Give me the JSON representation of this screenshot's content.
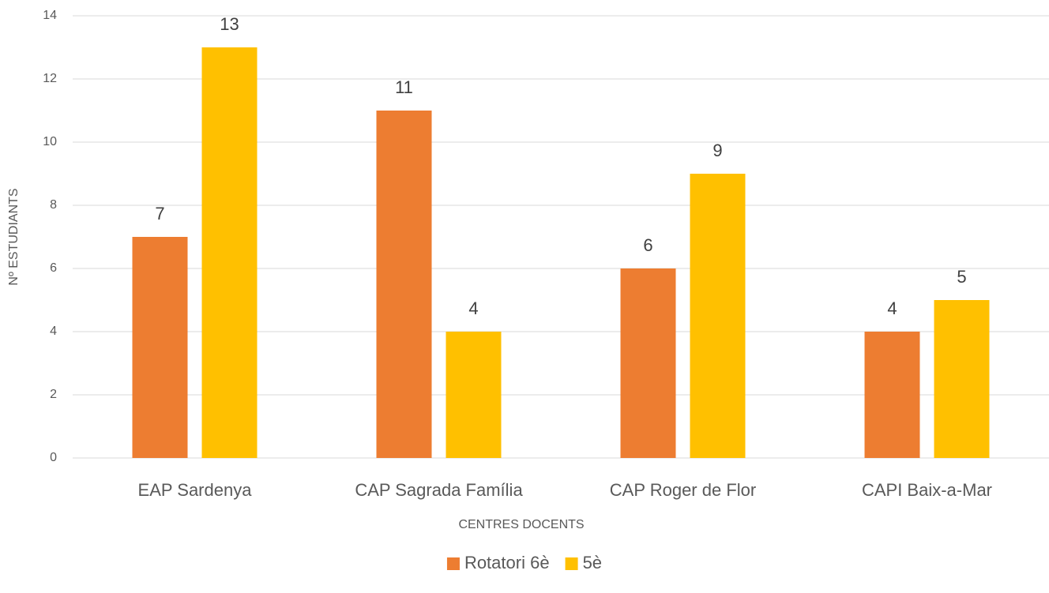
{
  "chart_data": {
    "type": "bar",
    "categories": [
      "EAP Sardenya",
      "CAP Sagrada Família",
      "CAP Roger de Flor",
      "CAPI Baix-a-Mar"
    ],
    "series": [
      {
        "name": "Rotatori 6è",
        "color": "#ed7d31",
        "values": [
          7,
          11,
          6,
          4
        ]
      },
      {
        "name": "5è",
        "color": "#ffc000",
        "values": [
          13,
          4,
          9,
          5
        ]
      }
    ],
    "xlabel": "CENTRES DOCENTS",
    "ylabel": "Nº ESTUDIANTS",
    "ylim": [
      0,
      14
    ],
    "yticks": [
      0,
      2,
      4,
      6,
      8,
      10,
      12,
      14
    ],
    "grid": true,
    "legend": "bottom"
  }
}
